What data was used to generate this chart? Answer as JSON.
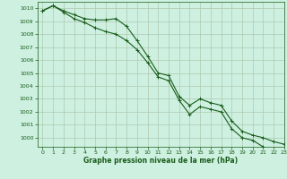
{
  "xlabel": "Graphe pression niveau de la mer (hPa)",
  "xlim": [
    -0.5,
    23
  ],
  "ylim": [
    999.3,
    1010.5
  ],
  "yticks": [
    1000,
    1001,
    1002,
    1003,
    1004,
    1005,
    1006,
    1007,
    1008,
    1009,
    1010
  ],
  "xticks": [
    0,
    1,
    2,
    3,
    4,
    5,
    6,
    7,
    8,
    9,
    10,
    11,
    12,
    13,
    14,
    15,
    16,
    17,
    18,
    19,
    20,
    21,
    22,
    23
  ],
  "background_color": "#cdf0e0",
  "line_color": "#1a5c1a",
  "grid_color": "#b0c8b0",
  "series1_x": [
    0,
    1,
    2,
    3,
    4,
    5,
    6,
    7,
    8,
    9,
    10,
    11,
    12,
    13,
    14,
    15,
    16,
    17,
    18,
    19,
    20,
    21,
    22,
    23
  ],
  "series1_y": [
    1009.8,
    1010.2,
    1009.8,
    1009.5,
    1009.2,
    1009.1,
    1009.1,
    1009.2,
    1008.6,
    1007.5,
    1006.3,
    1005.0,
    1004.8,
    1003.2,
    1002.5,
    1003.0,
    1002.7,
    1002.5,
    1001.3,
    1000.5,
    1000.2,
    1000.0,
    999.7,
    999.5
  ],
  "series2_x": [
    0,
    1,
    2,
    3,
    4,
    5,
    6,
    7,
    8,
    9,
    10,
    11,
    12,
    13,
    14,
    15,
    16,
    17,
    18,
    19,
    20,
    21,
    22,
    23
  ],
  "series2_y": [
    1009.8,
    1010.2,
    1009.7,
    1009.2,
    1008.9,
    1008.5,
    1008.2,
    1008.0,
    1007.5,
    1006.8,
    1005.8,
    1004.7,
    1004.4,
    1002.9,
    1001.8,
    1002.4,
    1002.2,
    1002.0,
    1000.7,
    1000.0,
    999.8,
    999.3,
    998.9,
    998.5
  ]
}
